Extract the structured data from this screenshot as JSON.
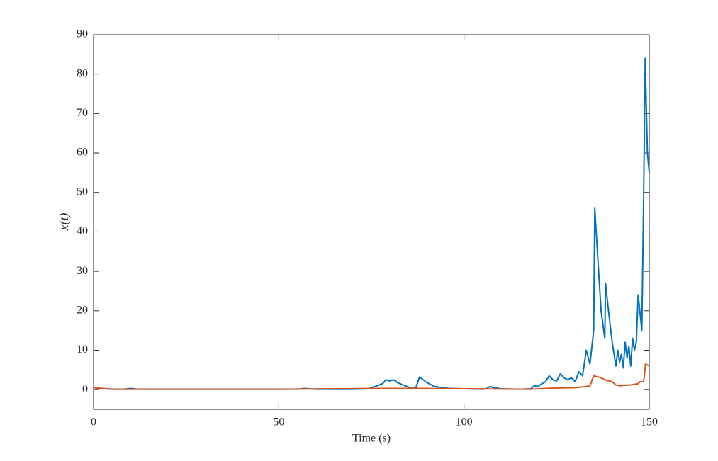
{
  "chart_data": {
    "type": "line",
    "xlabel": "Time (s)",
    "ylabel": "x(t)",
    "xlim": [
      0,
      150
    ],
    "xticks": [
      0,
      50,
      100,
      150
    ],
    "ylim": [
      -5,
      90
    ],
    "yticks": [
      0,
      10,
      20,
      30,
      40,
      50,
      60,
      70,
      80,
      90
    ],
    "grid": false,
    "series": [
      {
        "color": "#0072BD",
        "x": [
          0,
          2,
          5,
          8,
          10,
          12,
          20,
          30,
          40,
          50,
          55,
          57,
          60,
          70,
          74,
          76,
          78,
          79,
          80,
          81,
          82,
          84,
          86,
          87,
          88,
          89,
          90,
          92,
          94,
          96,
          100,
          105,
          106,
          107,
          108,
          110,
          115,
          118,
          119,
          120,
          121,
          122,
          123,
          124,
          125,
          126,
          127,
          128,
          129,
          130,
          131,
          132,
          133,
          134,
          135,
          135.3,
          136,
          137,
          138,
          138.2,
          139,
          140,
          141,
          141.5,
          142,
          142.5,
          143,
          143.5,
          144,
          144.5,
          145,
          145.5,
          146,
          146.5,
          147,
          148,
          148.5,
          148.9,
          149.5,
          150
        ],
        "values": [
          0.5,
          0.3,
          0.1,
          0.1,
          0.3,
          0.1,
          0.1,
          0.1,
          0.1,
          0.1,
          0.1,
          0.3,
          0.1,
          0.1,
          0.2,
          0.8,
          1.5,
          2.5,
          2.2,
          2.5,
          1.8,
          1.0,
          0.3,
          0.5,
          3.2,
          2.5,
          1.8,
          0.8,
          0.5,
          0.3,
          0.2,
          0.1,
          0.2,
          0.8,
          0.5,
          0.2,
          0.1,
          0.2,
          1.0,
          0.8,
          1.5,
          2.0,
          3.5,
          2.5,
          2.2,
          4.0,
          3.0,
          2.5,
          3.0,
          2.0,
          4.5,
          3.5,
          10,
          6.5,
          15,
          46,
          35,
          20,
          13,
          27,
          20,
          12,
          6,
          10,
          7,
          9,
          5.5,
          12,
          8,
          11,
          6,
          13,
          10,
          12,
          24,
          15,
          50,
          84,
          60,
          55
        ]
      },
      {
        "color": "#D95319",
        "x": [
          0,
          5,
          50,
          78,
          88,
          100,
          118,
          120,
          125,
          130,
          133,
          134,
          135,
          137,
          138,
          140,
          141,
          142,
          145,
          147,
          147.5,
          148.5,
          149,
          150
        ],
        "values": [
          0.5,
          0.1,
          0.1,
          0.3,
          0.3,
          0.2,
          0.1,
          0.2,
          0.4,
          0.5,
          0.8,
          1.0,
          3.5,
          3.0,
          2.5,
          2.0,
          1.2,
          1.0,
          1.2,
          1.5,
          2.0,
          2.0,
          6.5,
          6.0
        ]
      }
    ]
  }
}
